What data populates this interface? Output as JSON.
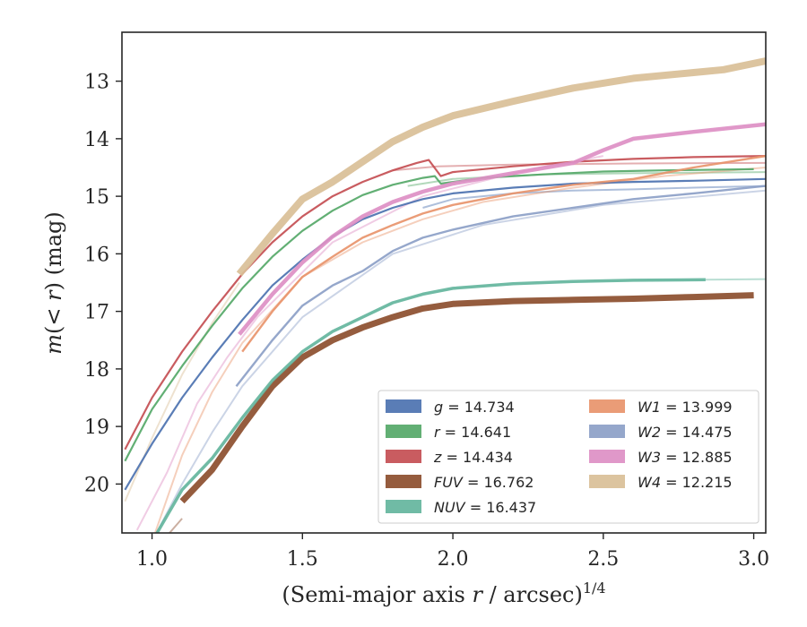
{
  "chart_data": {
    "type": "line",
    "xlabel": "(Semi-major axis r / arcsec)",
    "xlabel_parts": {
      "pre": "(Semi-major axis ",
      "var": "r",
      "post": " / arcsec)",
      "sup": "1/4"
    },
    "ylabel": "m(< r) (mag)",
    "ylabel_parts": {
      "var": "m",
      "mid": "(< ",
      "var2": "r",
      "post": ") (mag)"
    },
    "xlim": [
      0.9,
      3.04
    ],
    "ylim": [
      20.85,
      12.15
    ],
    "y_inverted": true,
    "xticks": [
      1.0,
      1.5,
      2.0,
      2.5,
      3.0
    ],
    "xtick_labels": [
      "1.0",
      "1.5",
      "2.0",
      "2.5",
      "3.0"
    ],
    "yticks": [
      13,
      14,
      15,
      16,
      17,
      18,
      19,
      20
    ],
    "ytick_labels": [
      "13",
      "14",
      "15",
      "16",
      "17",
      "18",
      "19",
      "20"
    ],
    "legend_position": "lower-right",
    "grid": false,
    "series": [
      {
        "name": "g = 14.734",
        "label_var": "g",
        "label_val": " = 14.734",
        "color": "#4c72b0",
        "width": 2.2,
        "x": [
          0.91,
          1.0,
          1.1,
          1.2,
          1.3,
          1.4,
          1.5,
          1.6,
          1.7,
          1.8,
          1.9,
          2.0,
          2.2,
          2.4,
          2.6,
          2.8,
          3.04
        ],
        "y": [
          20.1,
          19.3,
          18.5,
          17.8,
          17.15,
          16.55,
          16.1,
          15.7,
          15.4,
          15.2,
          15.05,
          14.95,
          14.85,
          14.78,
          14.75,
          14.73,
          14.7
        ],
        "faint": {
          "x": [
            1.9,
            2.0,
            2.2,
            2.4,
            2.6,
            2.8,
            3.04
          ],
          "y": [
            15.2,
            15.05,
            14.95,
            14.9,
            14.88,
            14.85,
            14.82
          ]
        }
      },
      {
        "name": "r = 14.641",
        "label_var": "r",
        "label_val": " = 14.641",
        "color": "#55a868",
        "width": 2.2,
        "x": [
          0.91,
          1.0,
          1.1,
          1.2,
          1.3,
          1.4,
          1.5,
          1.6,
          1.7,
          1.8,
          1.9,
          1.94,
          1.96,
          2.1,
          2.3,
          2.5,
          2.7,
          3.0
        ],
        "y": [
          19.6,
          18.7,
          17.95,
          17.25,
          16.6,
          16.05,
          15.6,
          15.25,
          14.98,
          14.8,
          14.68,
          14.65,
          14.78,
          14.68,
          14.62,
          14.57,
          14.55,
          14.53
        ],
        "faint": {
          "x": [
            1.85,
            2.0,
            2.3,
            2.6,
            3.04
          ],
          "y": [
            14.82,
            14.7,
            14.62,
            14.6,
            14.58
          ]
        }
      },
      {
        "name": "z = 14.434",
        "label_var": "z",
        "label_val": " = 14.434",
        "color": "#c44e52",
        "width": 2.2,
        "x": [
          0.91,
          1.0,
          1.1,
          1.2,
          1.3,
          1.4,
          1.5,
          1.6,
          1.7,
          1.8,
          1.88,
          1.92,
          1.96,
          2.0,
          2.2,
          2.4,
          2.6,
          2.8,
          3.04
        ],
        "y": [
          19.4,
          18.5,
          17.7,
          17.0,
          16.35,
          15.8,
          15.35,
          15.0,
          14.75,
          14.55,
          14.42,
          14.37,
          14.65,
          14.58,
          14.48,
          14.4,
          14.35,
          14.32,
          14.3
        ],
        "faint": {
          "x": [
            1.8,
            1.95,
            2.2,
            2.6,
            3.04
          ],
          "y": [
            14.55,
            14.48,
            14.45,
            14.43,
            14.42
          ]
        }
      },
      {
        "name": "FUV = 16.762",
        "label_var": "FUV",
        "label_val": " = 16.762",
        "color": "#8c4e2e",
        "width": 7,
        "x": [
          1.1,
          1.2,
          1.3,
          1.4,
          1.5,
          1.6,
          1.7,
          1.8,
          1.9,
          2.0,
          2.2,
          2.4,
          2.6,
          2.8,
          3.0
        ],
        "y": [
          20.3,
          19.75,
          19.0,
          18.3,
          17.8,
          17.5,
          17.28,
          17.1,
          16.95,
          16.87,
          16.82,
          16.8,
          16.78,
          16.75,
          16.72
        ],
        "faint": {
          "x": [
            0.95,
            1.05,
            1.1
          ],
          "y": [
            21.0,
            20.9,
            20.6
          ]
        }
      },
      {
        "name": "NUV = 16.437",
        "label_var": "NUV",
        "label_val": " = 16.437",
        "color": "#64b59d",
        "width": 3.5,
        "x": [
          1.0,
          1.1,
          1.2,
          1.3,
          1.4,
          1.5,
          1.6,
          1.7,
          1.8,
          1.9,
          2.0,
          2.2,
          2.4,
          2.6,
          2.84
        ],
        "y": [
          21.0,
          20.1,
          19.55,
          18.85,
          18.2,
          17.7,
          17.35,
          17.1,
          16.85,
          16.7,
          16.6,
          16.52,
          16.48,
          16.46,
          16.45
        ],
        "faint": {
          "x": [
            2.84,
            3.04
          ],
          "y": [
            16.45,
            16.44
          ]
        }
      },
      {
        "name": "W1 = 13.999",
        "label_var": "W1",
        "label_val": " = 13.999",
        "color": "#e8946b",
        "width": 2.4,
        "x": [
          1.3,
          1.4,
          1.5,
          1.6,
          1.7,
          1.8,
          1.9,
          2.0,
          2.2,
          2.4,
          2.6,
          2.8,
          3.04
        ],
        "y": [
          17.7,
          17.0,
          16.4,
          16.05,
          15.72,
          15.5,
          15.3,
          15.15,
          14.95,
          14.8,
          14.7,
          14.5,
          14.3
        ],
        "faint": {
          "x": [
            1.0,
            1.1,
            1.2,
            1.3,
            1.5,
            1.7,
            1.9,
            2.1,
            2.4,
            2.7,
            3.04
          ],
          "y": [
            21.0,
            19.5,
            18.4,
            17.55,
            16.4,
            15.8,
            15.4,
            15.1,
            14.85,
            14.65,
            14.5
          ]
        }
      },
      {
        "name": "W2 = 14.475",
        "label_var": "W2",
        "label_val": " = 14.475",
        "color": "#8c9fc7",
        "width": 2.4,
        "x": [
          1.28,
          1.4,
          1.5,
          1.6,
          1.7,
          1.8,
          1.9,
          2.0,
          2.2,
          2.4,
          2.6,
          2.8,
          3.04
        ],
        "y": [
          18.3,
          17.5,
          16.9,
          16.55,
          16.3,
          15.95,
          15.72,
          15.58,
          15.35,
          15.2,
          15.05,
          14.95,
          14.82
        ],
        "faint": {
          "x": [
            1.0,
            1.1,
            1.2,
            1.3,
            1.5,
            1.8,
            2.1,
            2.5,
            3.04
          ],
          "y": [
            21.0,
            20.0,
            19.1,
            18.3,
            17.1,
            16.0,
            15.5,
            15.15,
            14.9
          ]
        }
      },
      {
        "name": "W3 = 12.885",
        "label_var": "W3",
        "label_val": " = 12.885",
        "color": "#dd8fc4",
        "width": 4.5,
        "x": [
          1.29,
          1.4,
          1.5,
          1.6,
          1.7,
          1.8,
          1.9,
          2.0,
          2.2,
          2.4,
          2.5,
          2.6,
          2.8,
          3.04
        ],
        "y": [
          17.4,
          16.7,
          16.15,
          15.7,
          15.35,
          15.1,
          14.92,
          14.78,
          14.6,
          14.42,
          14.2,
          14.0,
          13.88,
          13.75
        ],
        "faint": {
          "x": [
            0.95,
            1.05,
            1.15,
            1.25,
            1.35,
            1.6,
            1.9,
            2.2,
            2.5
          ],
          "y": [
            20.8,
            19.8,
            18.6,
            17.8,
            17.1,
            15.8,
            15.0,
            14.6,
            14.3
          ]
        }
      },
      {
        "name": "W4 = 12.215",
        "label_var": "W4",
        "label_val": " = 12.215",
        "color": "#d9bf97",
        "width": 8,
        "x": [
          1.29,
          1.4,
          1.5,
          1.6,
          1.7,
          1.8,
          1.9,
          2.0,
          2.2,
          2.4,
          2.6,
          2.8,
          2.9,
          3.04
        ],
        "y": [
          16.35,
          15.65,
          15.05,
          14.75,
          14.4,
          14.05,
          13.8,
          13.6,
          13.35,
          13.12,
          12.95,
          12.85,
          12.8,
          12.65
        ],
        "faint": {
          "x": [
            0.91,
            1.0,
            1.1,
            1.2,
            1.29
          ],
          "y": [
            20.3,
            19.2,
            18.1,
            17.2,
            16.5
          ]
        }
      }
    ]
  }
}
